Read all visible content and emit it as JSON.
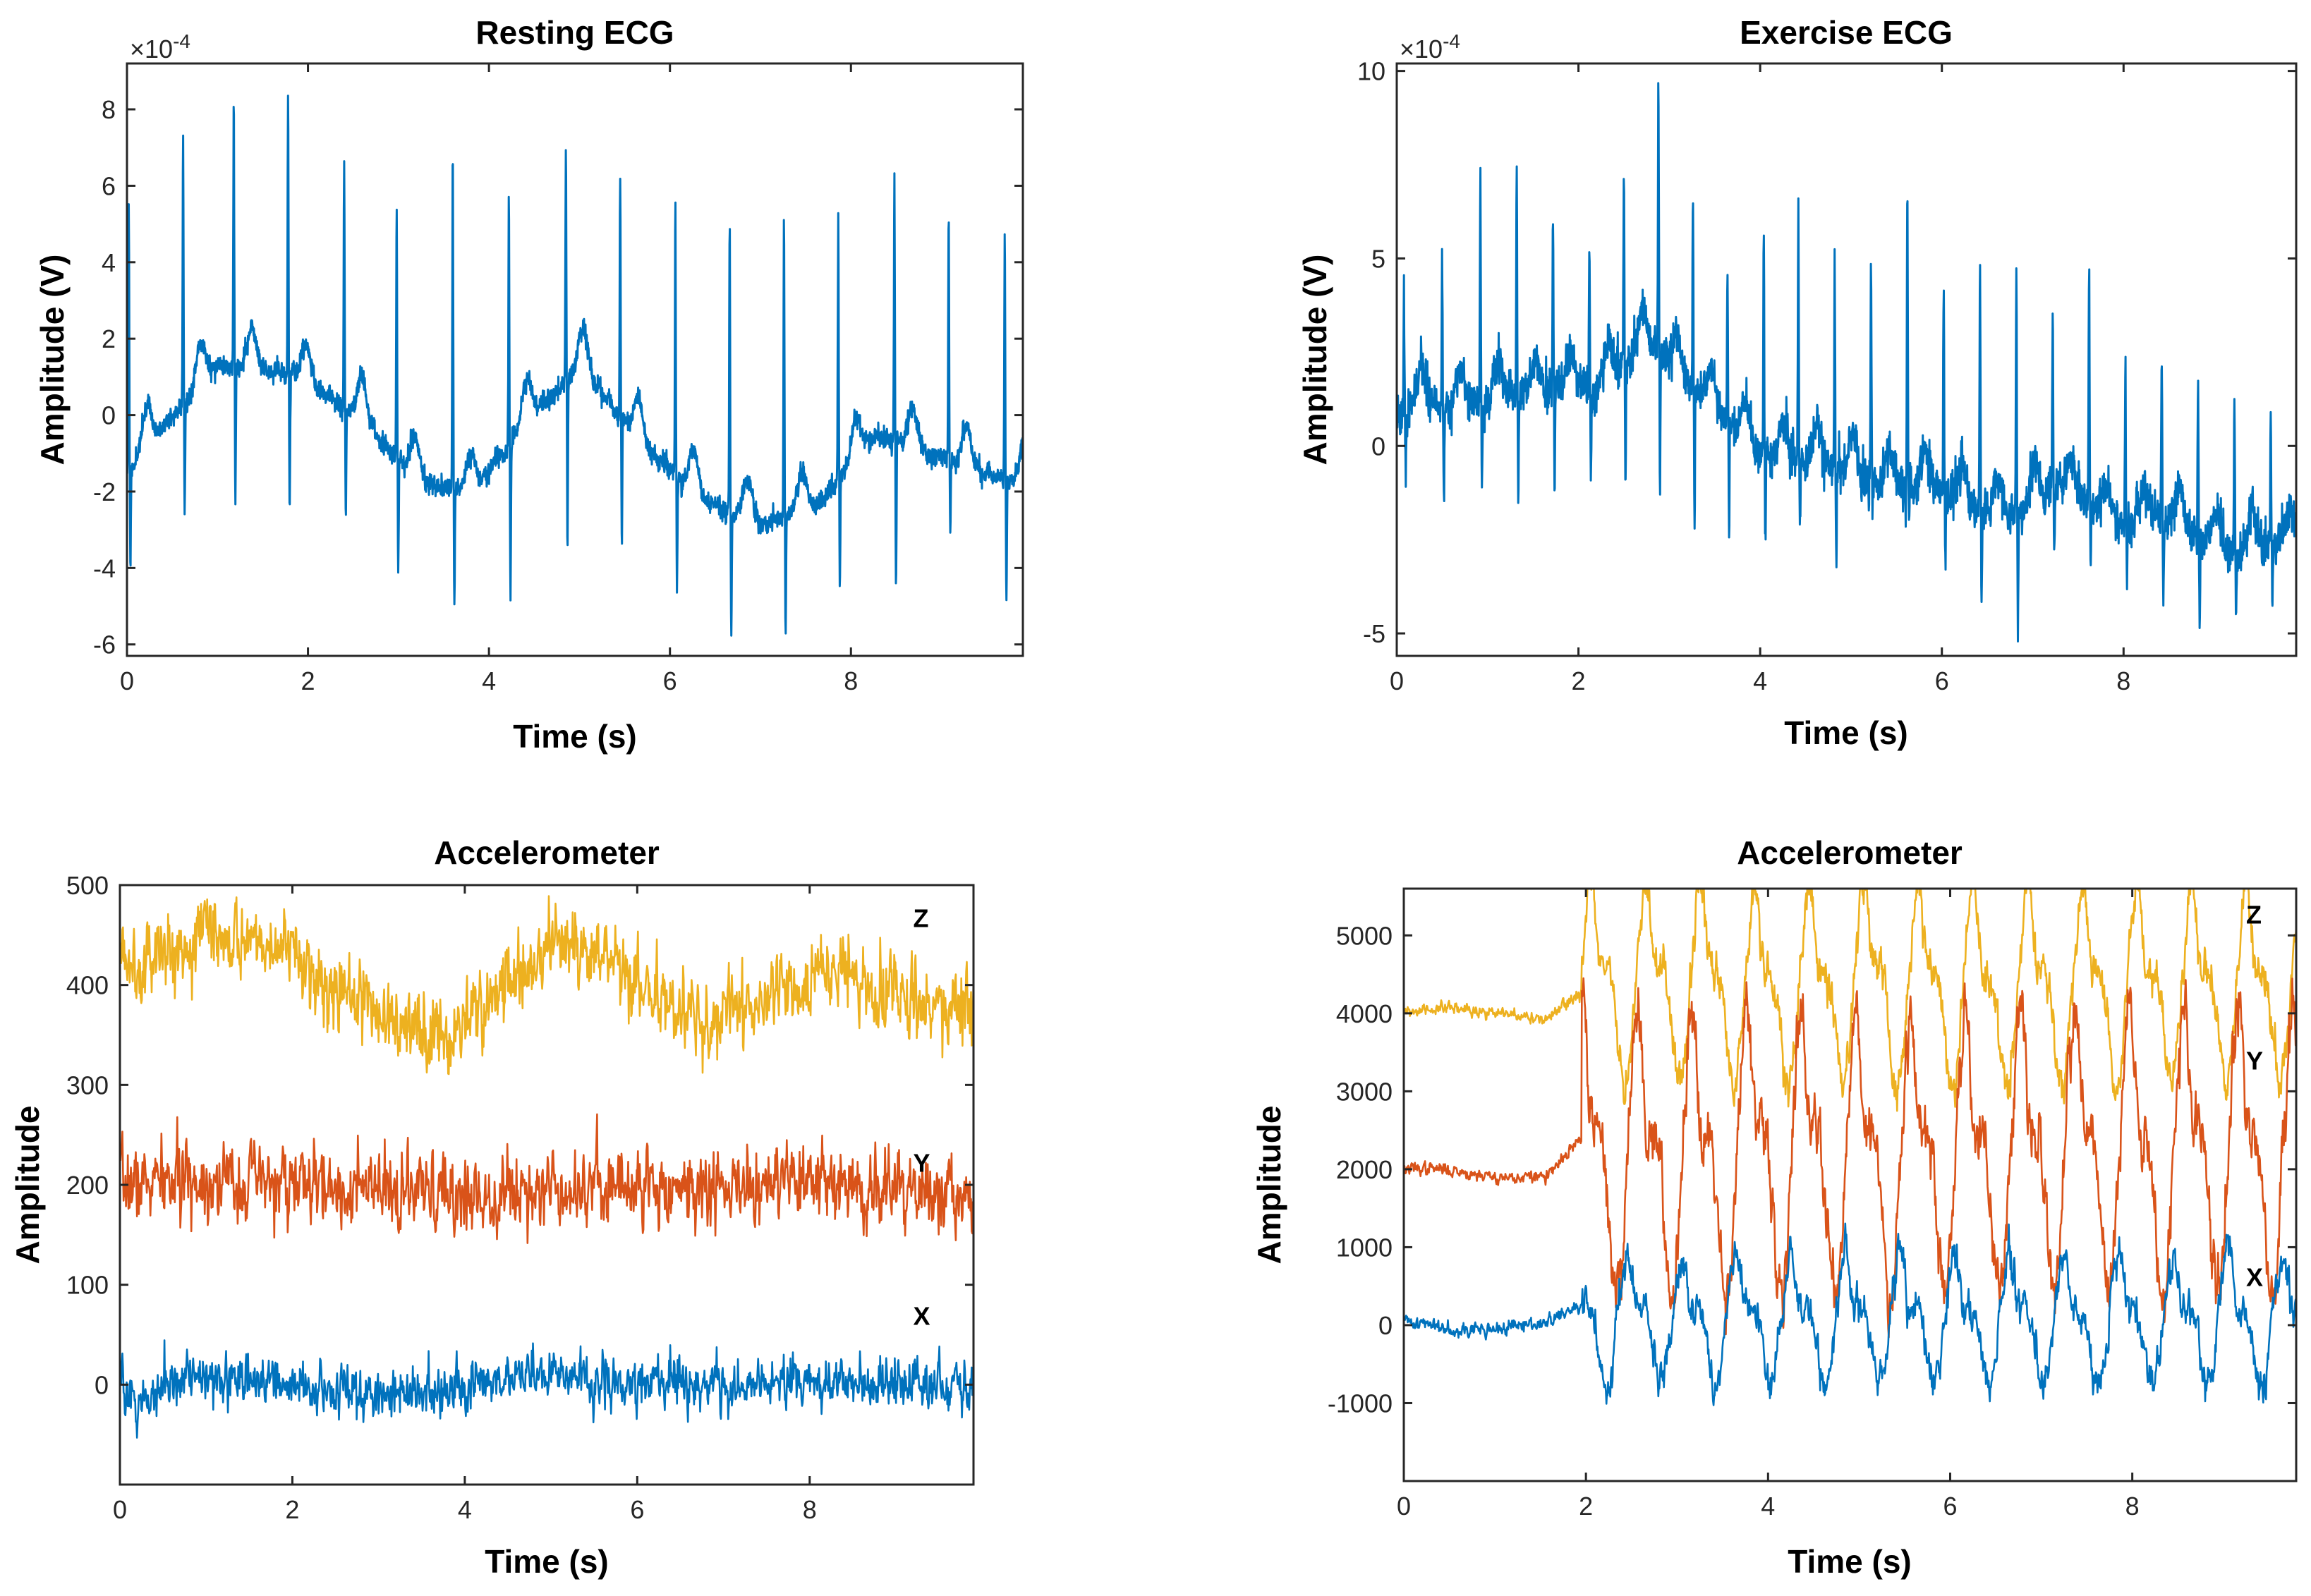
{
  "chart_data": [
    {
      "type": "line",
      "title": "Resting ECG",
      "xlabel": "Time (s)",
      "ylabel": "Amplitude (V)",
      "xlim": [
        0,
        9.9
      ],
      "ylim": [
        -6.3,
        9.2
      ],
      "exponent_label": "×10^-4",
      "exponent_base": "×10",
      "exponent_power": "-4",
      "xticks": [
        0,
        2,
        4,
        6,
        8
      ],
      "yticks": [
        -6,
        -4,
        -2,
        0,
        2,
        4,
        6,
        8
      ],
      "xticklabels": [
        "0",
        "2",
        "4",
        "6",
        "8"
      ],
      "yticklabels": [
        "-6",
        "-4",
        "-2",
        "0",
        "2",
        "4",
        "6",
        "8"
      ],
      "ecg": {
        "beat_times": [
          0.02,
          0.62,
          1.18,
          1.78,
          2.4,
          2.98,
          3.6,
          4.22,
          4.85,
          5.45,
          6.06,
          6.66,
          7.26,
          7.86,
          8.48,
          9.08,
          9.7
        ],
        "r_peaks": [
          5.4,
          7.5,
          8.3,
          8.4,
          6.7,
          5.7,
          6.8,
          5.8,
          7.2,
          6.3,
          5.5,
          5.2,
          5.2,
          5.4,
          6.3,
          5.3,
          4.7
        ],
        "s_troughs": [
          -4.0,
          -2.5,
          -2.3,
          -2.5,
          -2.6,
          -4.0,
          -4.9,
          -4.8,
          -3.6,
          -3.5,
          -4.5,
          -5.8,
          -5.9,
          -4.5,
          -4.3,
          -3.3,
          -4.8
        ],
        "baseline": [
          [
            0,
            -1.5
          ],
          [
            0.4,
            -0.3
          ],
          [
            1.0,
            1.3
          ],
          [
            1.8,
            1.1
          ],
          [
            2.6,
            -0.1
          ],
          [
            3.2,
            -1.7
          ],
          [
            3.8,
            -2.1
          ],
          [
            4.4,
            -0.2
          ],
          [
            5.0,
            1.3
          ],
          [
            5.7,
            -0.8
          ],
          [
            6.3,
            -2.1
          ],
          [
            7.0,
            -2.9
          ],
          [
            7.6,
            -2.4
          ],
          [
            8.3,
            -0.5
          ],
          [
            9.1,
            -1.2
          ],
          [
            9.9,
            -1.9
          ]
        ],
        "t_wave": 1.1,
        "noise": 0.22,
        "seed": 11
      }
    },
    {
      "type": "line",
      "title": "Exercise ECG",
      "xlabel": "Time (s)",
      "ylabel": "Amplitude (V)",
      "xlim": [
        0,
        9.9
      ],
      "ylim": [
        -5.6,
        10.2
      ],
      "exponent_label": "×10^-4",
      "exponent_base": "×10",
      "exponent_power": "-4",
      "xticks": [
        0,
        2,
        4,
        6,
        8
      ],
      "yticks": [
        -5,
        0,
        5,
        10
      ],
      "xticklabels": [
        "0",
        "2",
        "4",
        "6",
        "8"
      ],
      "yticklabels": [
        "-5",
        "0",
        "5",
        "10"
      ],
      "ecg": {
        "beat_times": [
          0.08,
          0.5,
          0.92,
          1.32,
          1.72,
          2.12,
          2.5,
          2.88,
          3.26,
          3.64,
          4.04,
          4.42,
          4.82,
          5.22,
          5.62,
          6.02,
          6.42,
          6.82,
          7.22,
          7.62,
          8.02,
          8.42,
          8.82,
          9.22,
          9.62
        ],
        "r_peaks": [
          4.1,
          5.1,
          7.2,
          7.3,
          6.0,
          5.3,
          7.1,
          9.6,
          7.0,
          4.7,
          5.8,
          6.0,
          5.0,
          5.0,
          7.0,
          4.1,
          5.3,
          5.0,
          3.5,
          4.9,
          2.0,
          2.6,
          1.6,
          1.3,
          0.8
        ],
        "s_troughs": [
          -0.9,
          -1.3,
          -1.2,
          -1.5,
          -1.5,
          -0.6,
          -1.2,
          -1.0,
          -2.0,
          -2.3,
          -2.5,
          -2.3,
          -3.2,
          -1.9,
          -2.0,
          -3.0,
          -4.3,
          -4.8,
          -3.0,
          -3.5,
          -3.4,
          -4.2,
          -4.7,
          -4.8,
          -4.2
        ],
        "baseline": [
          [
            0,
            0.9
          ],
          [
            0.6,
            1.0
          ],
          [
            1.4,
            1.3
          ],
          [
            2.2,
            1.5
          ],
          [
            2.8,
            2.7
          ],
          [
            3.3,
            1.5
          ],
          [
            4.0,
            -0.3
          ],
          [
            4.7,
            -0.5
          ],
          [
            5.2,
            -1.0
          ],
          [
            6.0,
            -1.2
          ],
          [
            6.6,
            -2.0
          ],
          [
            7.3,
            -1.1
          ],
          [
            7.9,
            -2.1
          ],
          [
            8.6,
            -2.0
          ],
          [
            9.2,
            -3.0
          ],
          [
            9.9,
            -2.5
          ]
        ],
        "t_wave": 1.0,
        "noise": 0.45,
        "seed": 23
      }
    },
    {
      "type": "line",
      "title": "Accelerometer",
      "xlabel": "Time (s)",
      "ylabel": "Amplitude",
      "xlim": [
        0,
        9.9
      ],
      "ylim": [
        -100,
        500
      ],
      "xticks": [
        0,
        2,
        4,
        6,
        8
      ],
      "yticks": [
        0,
        100,
        200,
        300,
        400,
        500
      ],
      "xticklabels": [
        "0",
        "2",
        "4",
        "6",
        "8"
      ],
      "yticklabels": [
        "0",
        "100",
        "200",
        "300",
        "400",
        "500"
      ],
      "series": [
        {
          "name": "Z",
          "color": "#EDB120",
          "label_at": [
            9.2,
            458
          ],
          "baseline": [
            [
              0,
              425
            ],
            [
              0.5,
              432
            ],
            [
              1.0,
              455
            ],
            [
              1.5,
              450
            ],
            [
              2.0,
              430
            ],
            [
              2.5,
              395
            ],
            [
              3.0,
              370
            ],
            [
              3.7,
              350
            ],
            [
              4.3,
              385
            ],
            [
              5.0,
              440
            ],
            [
              5.4,
              430
            ],
            [
              6.0,
              400
            ],
            [
              6.8,
              360
            ],
            [
              7.5,
              385
            ],
            [
              8.3,
              415
            ],
            [
              9.0,
              395
            ],
            [
              9.9,
              370
            ]
          ],
          "noise": 22,
          "seed": 5
        },
        {
          "name": "Y",
          "color": "#D95319",
          "label_at": [
            9.2,
            213
          ],
          "baseline": [
            [
              0,
              200
            ],
            [
              1.0,
              205
            ],
            [
              2.0,
              200
            ],
            [
              3.0,
              192
            ],
            [
              4.0,
              188
            ],
            [
              5.0,
              200
            ],
            [
              6.0,
              200
            ],
            [
              7.0,
              195
            ],
            [
              8.0,
              200
            ],
            [
              9.0,
              195
            ],
            [
              9.9,
              185
            ]
          ],
          "noise": 22,
          "seed": 7
        },
        {
          "name": "X",
          "color": "#0072BD",
          "label_at": [
            9.2,
            60
          ],
          "baseline": [
            [
              0,
              10
            ],
            [
              0.2,
              -25
            ],
            [
              0.4,
              -15
            ],
            [
              0.8,
              10
            ],
            [
              1.5,
              5
            ],
            [
              2.5,
              -5
            ],
            [
              3.5,
              -10
            ],
            [
              4.2,
              0
            ],
            [
              5.0,
              10
            ],
            [
              6.0,
              5
            ],
            [
              7.0,
              -3
            ],
            [
              8.0,
              5
            ],
            [
              9.0,
              0
            ],
            [
              9.9,
              -5
            ]
          ],
          "noise": 15,
          "seed": 9
        }
      ]
    },
    {
      "type": "line",
      "title": "Accelerometer",
      "xlabel": "Time (s)",
      "ylabel": "Amplitude",
      "xlim": [
        0,
        9.8
      ],
      "ylim": [
        -2000,
        5600
      ],
      "xticks": [
        0,
        2,
        4,
        6,
        8
      ],
      "yticks": [
        -1000,
        0,
        1000,
        2000,
        3000,
        4000,
        5000
      ],
      "xticklabels": [
        "0",
        "2",
        "4",
        "6",
        "8"
      ],
      "yticklabels": [
        "-1000",
        "0",
        "1000",
        "2000",
        "3000",
        "4000",
        "5000"
      ],
      "onset": 1.95,
      "period": 0.6,
      "series": [
        {
          "name": "Z",
          "color": "#EDB120",
          "label_at": [
            9.25,
            5150
          ],
          "rest_level": 4000,
          "rest_noise": 35,
          "active_level": 4250,
          "amplitude": 850,
          "noise": 120,
          "phase": 0.0,
          "seed": 31
        },
        {
          "name": "Y",
          "color": "#D95319",
          "label_at": [
            9.25,
            3280
          ],
          "rest_level": 1950,
          "rest_noise": 35,
          "active_level": 2050,
          "amplitude": 1200,
          "noise": 170,
          "phase": 0.9,
          "seed": 37
        },
        {
          "name": "X",
          "color": "#0072BD",
          "label_at": [
            9.25,
            500
          ],
          "rest_level": 0,
          "rest_noise": 40,
          "active_level": 0,
          "amplitude": 550,
          "noise": 110,
          "phase": 2.1,
          "seed": 41
        }
      ]
    }
  ]
}
